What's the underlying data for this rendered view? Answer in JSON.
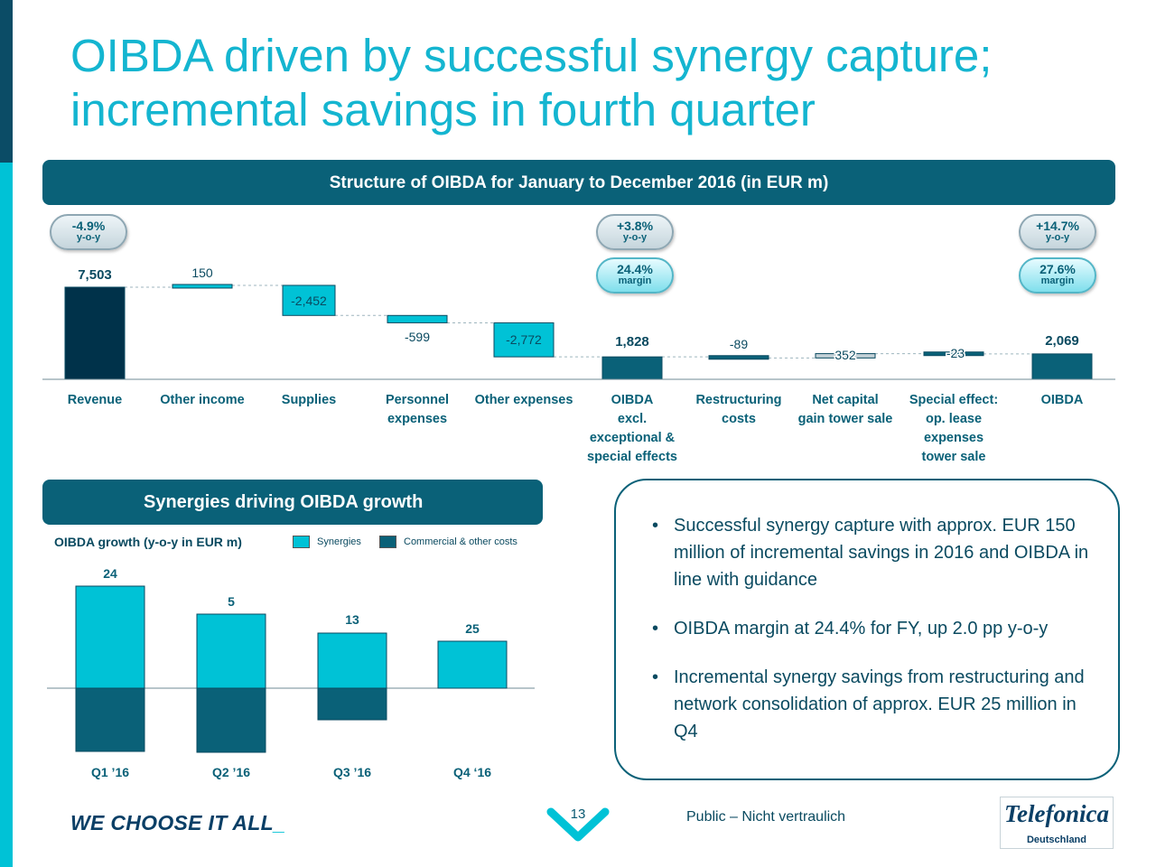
{
  "title": "OIBDA driven by successful synergy capture; incremental savings in fourth quarter",
  "header_band": "Structure of OIBDA for January to December 2016 (in EUR m)",
  "pills": [
    {
      "big": "-4.9%",
      "small": "y-o-y",
      "style": "grey"
    },
    {
      "big": "+3.8%",
      "small": "y-o-y",
      "style": "grey"
    },
    {
      "big": "24.4%",
      "small": "margin",
      "style": "teal"
    },
    {
      "big": "+14.7%",
      "small": "y-o-y",
      "style": "grey"
    },
    {
      "big": "27.6%",
      "small": "margin",
      "style": "teal"
    }
  ],
  "chart_data": [
    {
      "type": "bar",
      "subtype": "waterfall",
      "title": "Structure of OIBDA for January to December 2016 (in EUR m)",
      "categories": [
        "Revenue",
        "Other income",
        "Supplies",
        "Personnel expenses",
        "Other expenses",
        "OIBDA excl. exceptional & special effects",
        "Restructuring costs",
        "Net capital gain tower sale",
        "Special effect: op. lease expenses tower sale",
        "OIBDA"
      ],
      "category_lines": [
        [
          "Revenue"
        ],
        [
          "Other income"
        ],
        [
          "Supplies"
        ],
        [
          "Personnel",
          "expenses"
        ],
        [
          "Other expenses"
        ],
        [
          "OIBDA",
          "excl.",
          "exceptional &",
          "special effects"
        ],
        [
          "Restructuring",
          "costs"
        ],
        [
          "Net capital",
          "gain tower sale"
        ],
        [
          "Special effect:",
          "op. lease",
          "expenses",
          "tower sale"
        ],
        [
          "OIBDA"
        ]
      ],
      "values": [
        7503,
        150,
        -2452,
        -599,
        -2772,
        1828,
        -89,
        352,
        -23,
        2069
      ],
      "value_labels": [
        "7,503",
        "150",
        "-2,452",
        "-599",
        "-2,772",
        "1,828",
        "-89",
        "352",
        "-23",
        "2,069"
      ],
      "bar_kinds": [
        "total",
        "delta",
        "delta",
        "delta",
        "delta",
        "total",
        "delta",
        "delta",
        "delta",
        "total"
      ],
      "colors": {
        "revenue": "#00324a",
        "delta": "#00c2d6",
        "subtotal": "#0a6178",
        "grey": "#c3d1d7"
      }
    },
    {
      "type": "bar",
      "subtype": "diverging-stacked",
      "title": "OIBDA growth (y-o-y in EUR m)",
      "categories": [
        "Q1 ’16",
        "Q2 ’16",
        "Q3 ’16",
        "Q4 ‘16"
      ],
      "series": [
        {
          "name": "Synergies",
          "values": [
            24,
            5,
            13,
            25
          ],
          "color": "#00c2d6"
        },
        {
          "name": "Commercial & other costs",
          "color": "#0a6178"
        }
      ],
      "value_labels": [
        "24",
        "5",
        "13",
        "25"
      ],
      "note": "Commercial & other costs shown as negative bars below the axis without printed values"
    }
  ],
  "synergy_section": {
    "band_title": "Synergies driving OIBDA growth",
    "chart_label": "OIBDA growth (y-o-y in EUR m)",
    "legend": [
      {
        "label": "Synergies",
        "color": "#00c2d6"
      },
      {
        "label": "Commercial & other costs",
        "color": "#0a6178"
      }
    ]
  },
  "bullets": [
    "Successful synergy capture with approx. EUR 150 million of incremental savings in 2016 and OIBDA in line with guidance",
    "OIBDA margin at 24.4% for FY, up 2.0 pp y-o-y",
    "Incremental synergy savings from restructuring and network consolidation of approx. EUR 25 million in Q4"
  ],
  "footer": {
    "slogan": "WE CHOOSE IT ALL",
    "slogan_cursor": "_",
    "page_number": "13",
    "classification": "Public – Nicht vertraulich",
    "logo_text": "Telefonica",
    "logo_sub": "Deutschland"
  }
}
